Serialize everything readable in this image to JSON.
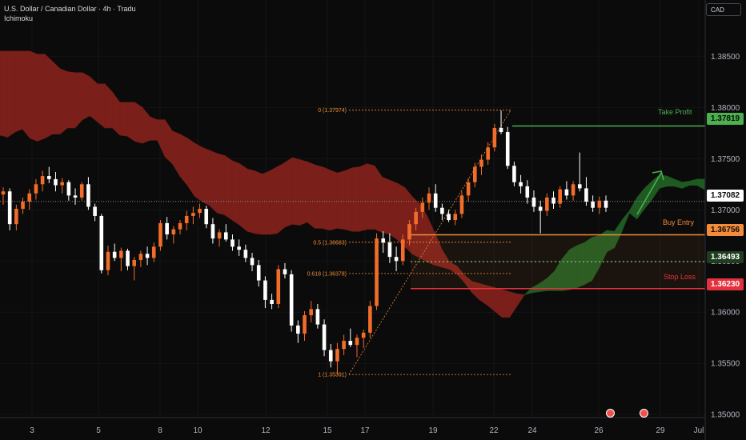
{
  "header": {
    "title": "U.S. Dollar / Canadian Dollar · 4h · Tradu",
    "indicator": "Ichimoku",
    "currency": "CAD"
  },
  "colors": {
    "background": "#0b0b0b",
    "bull_candle": "#f26c2a",
    "bear_candle": "#ffffff",
    "cloud_bear": "#7a1f1a",
    "cloud_bull": "#1f5a22",
    "take_profit": "#4caf50",
    "buy_entry": "#f28c3a",
    "stop_loss": "#e5313e",
    "current_price": "#d1d4dc"
  },
  "chart_data": {
    "type": "candlestick",
    "symbol": "USDCAD",
    "timeframe": "4h",
    "y_axis": {
      "ticks": [
        "1.38500",
        "1.38000",
        "1.37500",
        "1.37000",
        "1.36500",
        "1.36000",
        "1.35500",
        "1.35000"
      ],
      "ylim": [
        1.3497,
        1.3905
      ]
    },
    "x_axis": {
      "ticks": [
        "3",
        "5",
        "8",
        "10",
        "12",
        "15",
        "17",
        "19",
        "22",
        "24",
        "26",
        "29",
        "Jul"
      ]
    },
    "price_labels": {
      "take_profit": "1.37819",
      "current": "1.37082",
      "buy_entry": "1.36756",
      "mid": "1.36493",
      "stop_loss": "1.36230"
    },
    "levels": {
      "take_profit": 1.37819,
      "current": 1.37082,
      "buy_entry": 1.36756,
      "mid": 1.36493,
      "stop_loss": 1.3623
    },
    "zone_labels": {
      "take_profit": "Take Profit",
      "buy_entry": "Buy Entry",
      "stop_loss": "Stop Loss"
    },
    "fibonacci": [
      {
        "label": "0 (1.37974)",
        "value": 1.37974
      },
      {
        "label": "0.5 (1.36683)",
        "value": 1.36683
      },
      {
        "label": "0.618 (1.36378)",
        "value": 1.36378
      },
      {
        "label": "1 (1.35391)",
        "value": 1.35391
      }
    ],
    "candles": [
      [
        1.3715,
        1.3722,
        1.3705,
        1.3718
      ],
      [
        1.3718,
        1.3721,
        1.368,
        1.3686
      ],
      [
        1.3686,
        1.3705,
        1.368,
        1.3701
      ],
      [
        1.3701,
        1.3712,
        1.3696,
        1.3708
      ],
      [
        1.3708,
        1.372,
        1.37,
        1.3716
      ],
      [
        1.3716,
        1.373,
        1.371,
        1.3725
      ],
      [
        1.3725,
        1.3738,
        1.3718,
        1.3733
      ],
      [
        1.3733,
        1.3742,
        1.3726,
        1.373
      ],
      [
        1.373,
        1.3737,
        1.3718,
        1.3724
      ],
      [
        1.3724,
        1.3731,
        1.3716,
        1.3727
      ],
      [
        1.3727,
        1.3729,
        1.3709,
        1.3714
      ],
      [
        1.3714,
        1.3721,
        1.3705,
        1.3712
      ],
      [
        1.3712,
        1.3727,
        1.3709,
        1.3725
      ],
      [
        1.3725,
        1.3732,
        1.37,
        1.3703
      ],
      [
        1.3703,
        1.3706,
        1.3689,
        1.3694
      ],
      [
        1.3694,
        1.3696,
        1.3638,
        1.3641
      ],
      [
        1.3641,
        1.3665,
        1.3636,
        1.3659
      ],
      [
        1.3659,
        1.3667,
        1.365,
        1.3653
      ],
      [
        1.3653,
        1.3663,
        1.364,
        1.366
      ],
      [
        1.366,
        1.3662,
        1.3641,
        1.3645
      ],
      [
        1.3645,
        1.3654,
        1.3631,
        1.3651
      ],
      [
        1.3651,
        1.366,
        1.3644,
        1.3657
      ],
      [
        1.3657,
        1.3664,
        1.3646,
        1.3653
      ],
      [
        1.3653,
        1.3668,
        1.3649,
        1.3664
      ],
      [
        1.3664,
        1.369,
        1.366,
        1.3687
      ],
      [
        1.3687,
        1.3693,
        1.3671,
        1.3676
      ],
      [
        1.3676,
        1.3684,
        1.3667,
        1.3681
      ],
      [
        1.3681,
        1.369,
        1.3676,
        1.3687
      ],
      [
        1.3687,
        1.3699,
        1.368,
        1.3694
      ],
      [
        1.3694,
        1.3703,
        1.3686,
        1.3697
      ],
      [
        1.3697,
        1.3706,
        1.3692,
        1.3701
      ],
      [
        1.3701,
        1.3704,
        1.3682,
        1.3686
      ],
      [
        1.3686,
        1.3692,
        1.3667,
        1.3672
      ],
      [
        1.3672,
        1.3681,
        1.3664,
        1.3678
      ],
      [
        1.3678,
        1.3686,
        1.3669,
        1.3671
      ],
      [
        1.3671,
        1.3676,
        1.366,
        1.3664
      ],
      [
        1.3664,
        1.3671,
        1.3655,
        1.3661
      ],
      [
        1.3661,
        1.3666,
        1.3649,
        1.3653
      ],
      [
        1.3653,
        1.3658,
        1.364,
        1.3646
      ],
      [
        1.3646,
        1.3651,
        1.3625,
        1.3631
      ],
      [
        1.3631,
        1.3635,
        1.3604,
        1.3612
      ],
      [
        1.3612,
        1.3618,
        1.3603,
        1.3608
      ],
      [
        1.3608,
        1.3646,
        1.3604,
        1.3642
      ],
      [
        1.3642,
        1.3648,
        1.3633,
        1.3637
      ],
      [
        1.3637,
        1.3641,
        1.3581,
        1.3587
      ],
      [
        1.3587,
        1.3592,
        1.357,
        1.3579
      ],
      [
        1.3579,
        1.3601,
        1.3572,
        1.3597
      ],
      [
        1.3597,
        1.3611,
        1.359,
        1.3603
      ],
      [
        1.3603,
        1.3608,
        1.3584,
        1.3588
      ],
      [
        1.3588,
        1.3593,
        1.3557,
        1.3563
      ],
      [
        1.3563,
        1.3569,
        1.3546,
        1.3552
      ],
      [
        1.3552,
        1.357,
        1.3539,
        1.3564
      ],
      [
        1.3564,
        1.3578,
        1.3558,
        1.3572
      ],
      [
        1.3572,
        1.3584,
        1.3566,
        1.3568
      ],
      [
        1.3568,
        1.3578,
        1.3556,
        1.3575
      ],
      [
        1.3575,
        1.3583,
        1.3565,
        1.358
      ],
      [
        1.358,
        1.3611,
        1.3575,
        1.3606
      ],
      [
        1.3606,
        1.3677,
        1.3602,
        1.3672
      ],
      [
        1.3672,
        1.3679,
        1.3658,
        1.3668
      ],
      [
        1.3668,
        1.3677,
        1.3648,
        1.3654
      ],
      [
        1.3654,
        1.3664,
        1.364,
        1.365
      ],
      [
        1.365,
        1.3676,
        1.3646,
        1.3671
      ],
      [
        1.3671,
        1.369,
        1.3665,
        1.3686
      ],
      [
        1.3686,
        1.3702,
        1.368,
        1.3698
      ],
      [
        1.3698,
        1.3712,
        1.3692,
        1.3707
      ],
      [
        1.3707,
        1.3722,
        1.37,
        1.3716
      ],
      [
        1.3716,
        1.3725,
        1.3698,
        1.3702
      ],
      [
        1.3702,
        1.3706,
        1.369,
        1.3696
      ],
      [
        1.3696,
        1.37,
        1.3688,
        1.369
      ],
      [
        1.369,
        1.37,
        1.3685,
        1.3696
      ],
      [
        1.3696,
        1.3718,
        1.3692,
        1.3714
      ],
      [
        1.3714,
        1.3731,
        1.3708,
        1.3727
      ],
      [
        1.3727,
        1.3746,
        1.3722,
        1.3742
      ],
      [
        1.3742,
        1.3754,
        1.3734,
        1.3749
      ],
      [
        1.3749,
        1.3766,
        1.3744,
        1.3761
      ],
      [
        1.3761,
        1.3784,
        1.3757,
        1.378
      ],
      [
        1.378,
        1.3797,
        1.3774,
        1.3776
      ],
      [
        1.3776,
        1.3781,
        1.374,
        1.3743
      ],
      [
        1.3743,
        1.3747,
        1.3723,
        1.3727
      ],
      [
        1.3727,
        1.3734,
        1.3716,
        1.3723
      ],
      [
        1.3723,
        1.3729,
        1.3706,
        1.3712
      ],
      [
        1.3712,
        1.3719,
        1.3698,
        1.3703
      ],
      [
        1.3703,
        1.3709,
        1.3677,
        1.3699
      ],
      [
        1.3699,
        1.3716,
        1.3694,
        1.3712
      ],
      [
        1.3712,
        1.3718,
        1.3701,
        1.3706
      ],
      [
        1.3706,
        1.3723,
        1.3702,
        1.372
      ],
      [
        1.372,
        1.3728,
        1.371,
        1.3714
      ],
      [
        1.3714,
        1.3728,
        1.3709,
        1.3725
      ],
      [
        1.3725,
        1.3756,
        1.3718,
        1.3721
      ],
      [
        1.3721,
        1.3732,
        1.3704,
        1.3708
      ],
      [
        1.3708,
        1.3714,
        1.3698,
        1.3702
      ],
      [
        1.3702,
        1.3713,
        1.3696,
        1.3709
      ],
      [
        1.3709,
        1.3714,
        1.3698,
        1.3702
      ]
    ],
    "cloud_kumo": [
      [
        1.3773,
        1.3855
      ],
      [
        1.3771,
        1.3855
      ],
      [
        1.3776,
        1.3855
      ],
      [
        1.3779,
        1.3855
      ],
      [
        1.377,
        1.3855
      ],
      [
        1.3767,
        1.3852
      ],
      [
        1.377,
        1.3852
      ],
      [
        1.3774,
        1.3845
      ],
      [
        1.3774,
        1.3838
      ],
      [
        1.378,
        1.3835
      ],
      [
        1.378,
        1.3834
      ],
      [
        1.3788,
        1.3834
      ],
      [
        1.3792,
        1.383
      ],
      [
        1.3786,
        1.3823
      ],
      [
        1.378,
        1.3823
      ],
      [
        1.378,
        1.3815
      ],
      [
        1.3773,
        1.3805
      ],
      [
        1.3772,
        1.3805
      ],
      [
        1.3767,
        1.3805
      ],
      [
        1.3765,
        1.38
      ],
      [
        1.3768,
        1.3791
      ],
      [
        1.3768,
        1.3788
      ],
      [
        1.3752,
        1.3788
      ],
      [
        1.3745,
        1.3777
      ],
      [
        1.3733,
        1.3774
      ],
      [
        1.3724,
        1.377
      ],
      [
        1.3713,
        1.3765
      ],
      [
        1.3708,
        1.3761
      ],
      [
        1.3704,
        1.3758
      ],
      [
        1.3697,
        1.3755
      ],
      [
        1.3695,
        1.3753
      ],
      [
        1.369,
        1.3748
      ],
      [
        1.3685,
        1.3745
      ],
      [
        1.3679,
        1.374
      ],
      [
        1.3677,
        1.3738
      ],
      [
        1.3676,
        1.3735
      ],
      [
        1.3676,
        1.3738
      ],
      [
        1.3677,
        1.3742
      ],
      [
        1.3683,
        1.3746
      ],
      [
        1.3686,
        1.3751
      ],
      [
        1.3685,
        1.3749
      ],
      [
        1.3688,
        1.3747
      ],
      [
        1.3682,
        1.3744
      ],
      [
        1.3682,
        1.3742
      ],
      [
        1.368,
        1.3739
      ],
      [
        1.3682,
        1.3736
      ],
      [
        1.3681,
        1.3738
      ],
      [
        1.3679,
        1.3741
      ],
      [
        1.3679,
        1.3742
      ],
      [
        1.3681,
        1.3745
      ],
      [
        1.3681,
        1.3743
      ],
      [
        1.3678,
        1.3732
      ],
      [
        1.3676,
        1.3729
      ],
      [
        1.3671,
        1.3726
      ],
      [
        1.3664,
        1.3722
      ],
      [
        1.3657,
        1.3713
      ],
      [
        1.3653,
        1.3706
      ],
      [
        1.3649,
        1.3694
      ],
      [
        1.3646,
        1.3678
      ],
      [
        1.3644,
        1.3661
      ],
      [
        1.3642,
        1.3649
      ],
      [
        1.3637,
        1.3645
      ],
      [
        1.3629,
        1.3636
      ],
      [
        1.3619,
        1.363
      ],
      [
        1.3612,
        1.3628
      ],
      [
        1.3607,
        1.3626
      ],
      [
        1.3601,
        1.3624
      ],
      [
        1.3595,
        1.3622
      ],
      [
        1.3595,
        1.362
      ],
      [
        1.3606,
        1.3618
      ],
      [
        1.3617,
        1.3617
      ],
      [
        1.3619,
        1.3624
      ],
      [
        1.362,
        1.3628
      ],
      [
        1.3621,
        1.3633
      ],
      [
        1.3621,
        1.364
      ],
      [
        1.3621,
        1.3652
      ],
      [
        1.3622,
        1.3661
      ],
      [
        1.3624,
        1.3665
      ],
      [
        1.3627,
        1.3668
      ],
      [
        1.3631,
        1.3673
      ],
      [
        1.3644,
        1.3675
      ],
      [
        1.3659,
        1.368
      ],
      [
        1.3663,
        1.3679
      ],
      [
        1.3679,
        1.369
      ],
      [
        1.3697,
        1.3699
      ],
      [
        1.3691,
        1.3712
      ],
      [
        1.3701,
        1.3721
      ],
      [
        1.371,
        1.3728
      ],
      [
        1.3721,
        1.3734
      ],
      [
        1.3723,
        1.3733
      ],
      [
        1.3723,
        1.373
      ],
      [
        1.3721,
        1.3727
      ],
      [
        1.3724,
        1.3728
      ],
      [
        1.3724,
        1.373
      ],
      [
        1.372,
        1.373
      ]
    ]
  }
}
